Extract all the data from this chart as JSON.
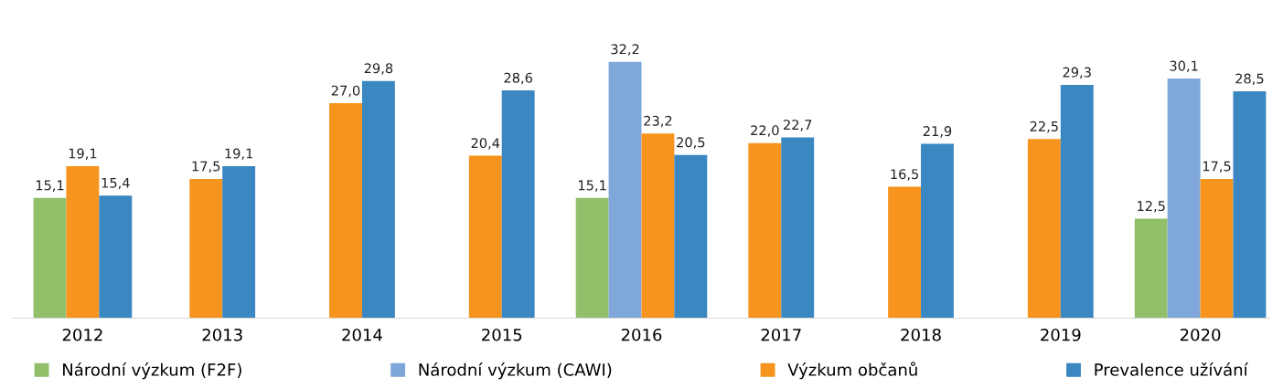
{
  "chart_data": {
    "type": "bar",
    "categories": [
      "2012",
      "2013",
      "2014",
      "2015",
      "2016",
      "2017",
      "2018",
      "2019",
      "2020"
    ],
    "series": [
      {
        "name": "Národní výzkum (F2F)",
        "color": "#91bf6a",
        "values": [
          15.1,
          null,
          null,
          null,
          15.1,
          null,
          null,
          null,
          12.5
        ],
        "value_labels": [
          "15,1",
          null,
          null,
          null,
          "15,1",
          null,
          null,
          null,
          "12,5"
        ]
      },
      {
        "name": "Národní výzkum (CAWI)",
        "color": "#7fa7d9",
        "values": [
          null,
          null,
          null,
          null,
          32.2,
          null,
          null,
          null,
          30.1
        ],
        "value_labels": [
          null,
          null,
          null,
          null,
          "32,2",
          null,
          null,
          null,
          "30,1"
        ]
      },
      {
        "name": "Výzkum občanů",
        "color": "#f7941d",
        "values": [
          19.1,
          17.5,
          27.0,
          20.4,
          23.2,
          22.0,
          16.5,
          22.5,
          17.5
        ],
        "value_labels": [
          "19,1",
          "17,5",
          "27,0",
          "20,4",
          "23,2",
          "22,0",
          "16,5",
          "22,5",
          "17,5"
        ]
      },
      {
        "name": "Prevalence užívání",
        "color": "#3a87c2",
        "values": [
          15.4,
          19.1,
          29.8,
          28.6,
          20.5,
          22.7,
          21.9,
          29.3,
          28.5
        ],
        "value_labels": [
          "15,4",
          "19,1",
          "29,8",
          "28,6",
          "20,5",
          "22,7",
          "21,9",
          "29,3",
          "28,5"
        ]
      }
    ],
    "legend": "bottom",
    "grid": false
  }
}
